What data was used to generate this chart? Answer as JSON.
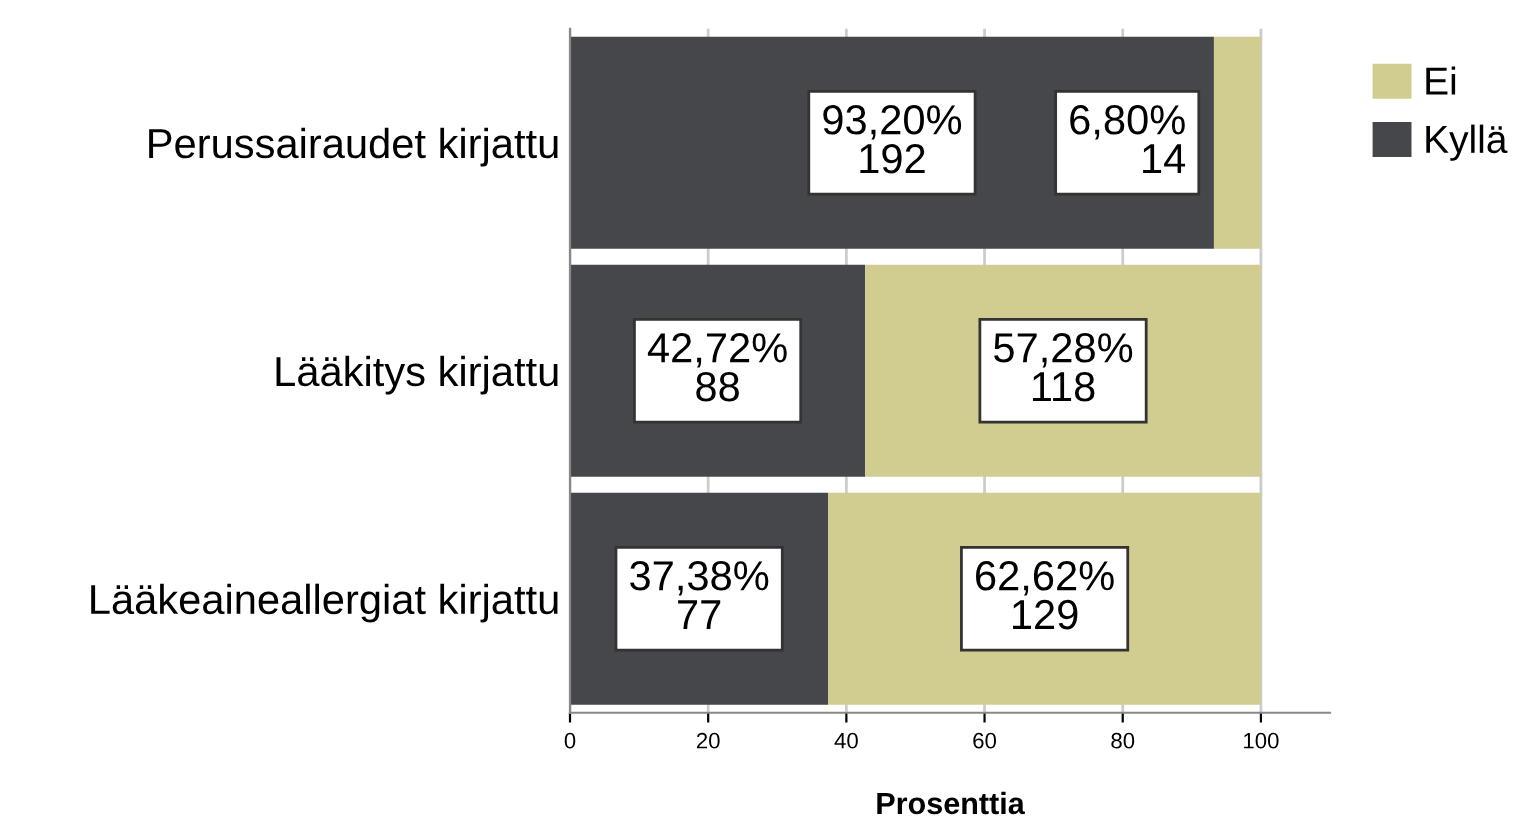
{
  "chart_data": {
    "type": "bar",
    "orientation": "horizontal",
    "stacked": true,
    "xlabel": "Prosenttia",
    "categories": [
      "Perussairaudet kirjattu",
      "Lääkitys kirjattu",
      "Lääkeaineallergiat kirjattu"
    ],
    "series": [
      {
        "name": "Kyllä",
        "color": "#46474a",
        "values": [
          93.2,
          42.72,
          37.38
        ],
        "value_labels": [
          "93,20%\n192",
          "42,72%\n88",
          "37,38%\n77"
        ]
      },
      {
        "name": "Ei",
        "color": "#d1cc8f",
        "values": [
          6.8,
          57.28,
          62.62
        ],
        "value_labels": [
          "6,80%\n14",
          "57,28%\n118",
          "62,62%\n129"
        ]
      }
    ],
    "xlim": [
      0,
      110
    ],
    "xticks": [
      0,
      20,
      40,
      60,
      80,
      100
    ],
    "grid": "x",
    "legend": "top right"
  }
}
